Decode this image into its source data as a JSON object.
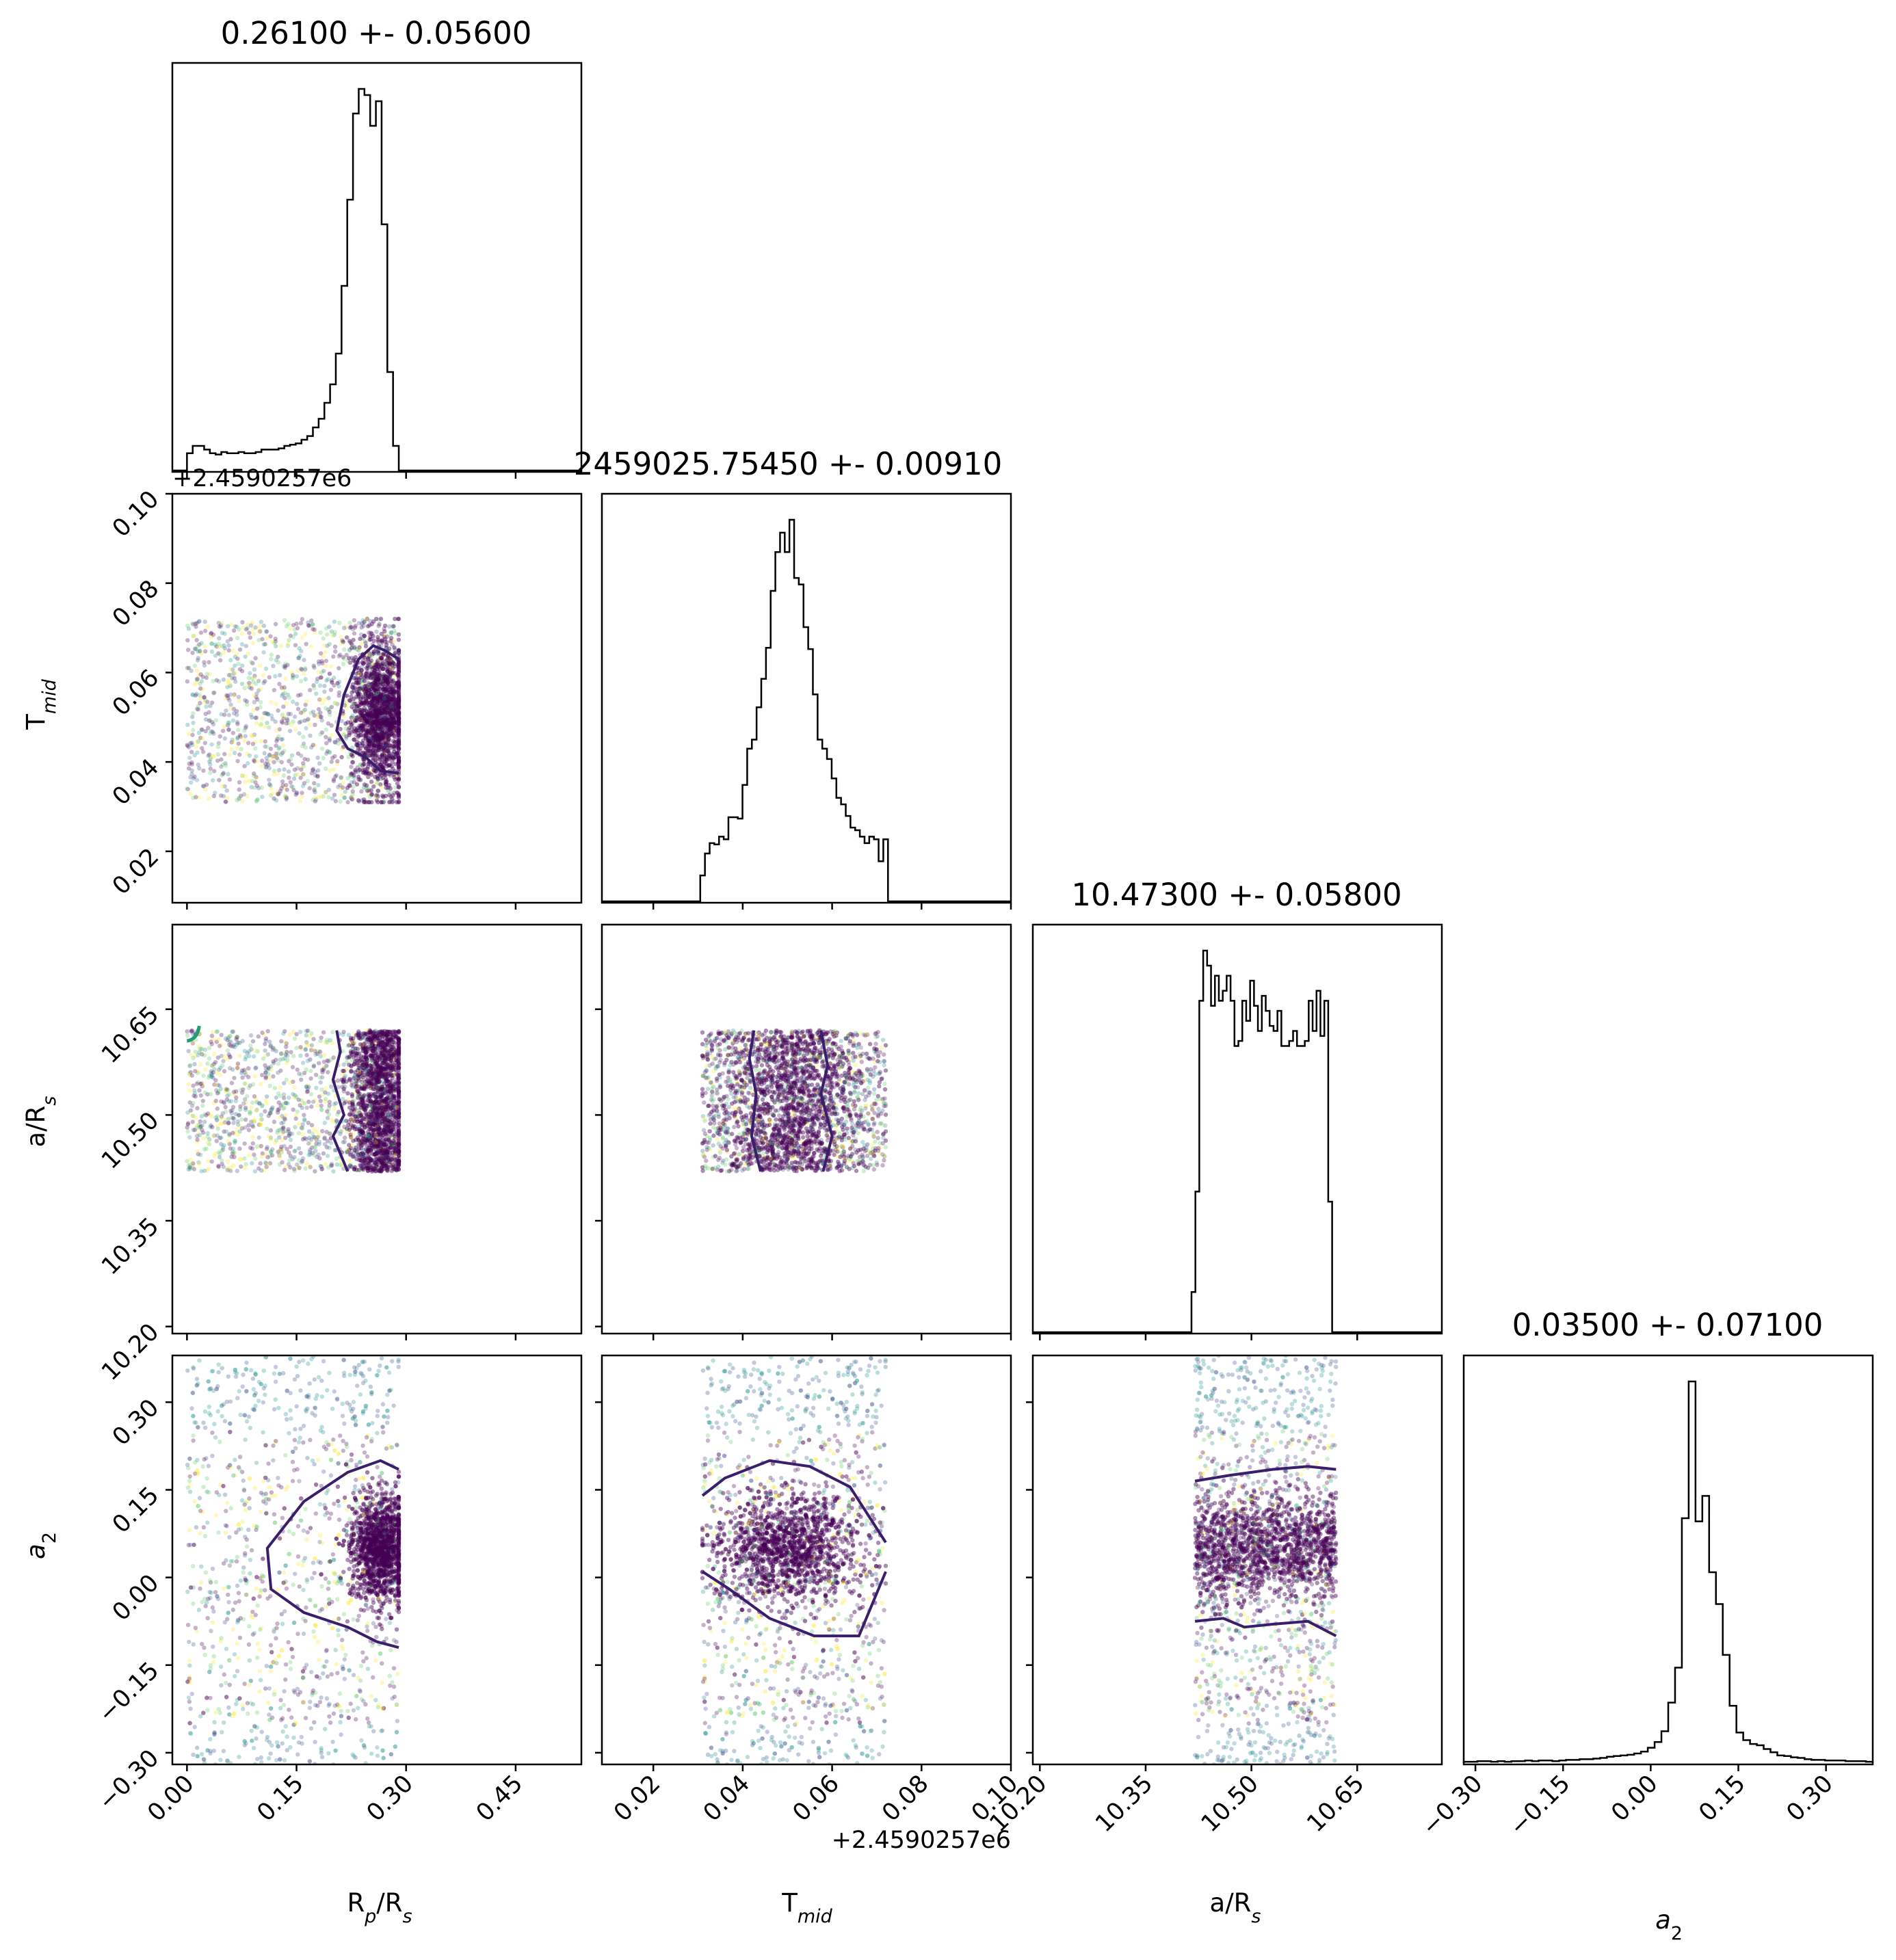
{
  "chart_data": {
    "type": "corner",
    "parameters": [
      {
        "name": "R<sub>p</sub>/R<sub>s</sub>",
        "label": "Rp/Rs",
        "label_sub": "p",
        "label_tail": "/R",
        "label_sub2": "s",
        "title": "0.26100 +- 0.05600",
        "range": [
          -0.02,
          0.54
        ],
        "ticks": [
          0.0,
          0.15,
          0.3,
          0.45
        ],
        "tick_labels": [
          "0.00",
          "0.15",
          "0.30",
          "0.45"
        ]
      },
      {
        "name": "T<sub>mid</sub>",
        "label": "Tmid",
        "label_sub": "mid",
        "title": "2459025.75450 +- 0.00910",
        "offset": "+2.4590257e6",
        "range": [
          0.0085,
          0.1
        ],
        "ticks": [
          0.02,
          0.04,
          0.06,
          0.08,
          0.1
        ],
        "tick_labels": [
          "0.02",
          "0.04",
          "0.06",
          "0.08",
          "0.10"
        ]
      },
      {
        "name": "a/R<sub>s</sub>",
        "label": "a/Rs",
        "label_sub": "s",
        "title": "10.47300 +- 0.05800",
        "range": [
          10.19,
          10.77
        ],
        "ticks": [
          10.2,
          10.35,
          10.5,
          10.65
        ],
        "tick_labels": [
          "10.20",
          "10.35",
          "10.50",
          "10.65"
        ]
      },
      {
        "name": "a<sub>2</sub>",
        "label": "a2",
        "label_sub": "2",
        "title": "0.03500 +- 0.07100",
        "range": [
          -0.32,
          0.38
        ],
        "ticks": [
          -0.3,
          -0.15,
          0.0,
          0.15,
          0.3
        ],
        "tick_labels": [
          "−0.30",
          "−0.15",
          "0.00",
          "0.15",
          "0.30"
        ]
      }
    ],
    "histograms": [
      {
        "param": "Rp/Rs",
        "bin_edges": [
          0.0,
          0.29
        ],
        "counts": [
          14,
          20,
          20,
          17,
          14,
          13,
          15,
          14,
          14,
          15,
          14,
          14,
          15,
          17,
          17,
          17,
          18,
          20,
          21,
          22,
          25,
          28,
          35,
          42,
          55,
          70,
          95,
          150,
          220,
          290,
          310,
          305,
          280,
          300,
          200,
          80,
          20
        ]
      },
      {
        "param": "Tmid",
        "bin_edges": [
          0.0305,
          0.0725
        ],
        "counts": [
          20,
          37,
          45,
          44,
          50,
          48,
          65,
          65,
          64,
          90,
          118,
          125,
          150,
          172,
          196,
          240,
          270,
          285,
          270,
          295,
          250,
          245,
          212,
          195,
          160,
          125,
          118,
          110,
          95,
          80,
          75,
          66,
          57,
          55,
          50,
          45,
          50,
          48,
          31,
          48
        ]
      },
      {
        "param": "a/Rs",
        "bin_edges": [
          10.415,
          10.62
        ],
        "counts": [
          40,
          140,
          330,
          380,
          365,
          325,
          355,
          330,
          340,
          355,
          330,
          285,
          290,
          330,
          310,
          350,
          325,
          300,
          335,
          320,
          305,
          300,
          320,
          285,
          285,
          290,
          300,
          285,
          285,
          290,
          330,
          300,
          340,
          295,
          330,
          130,
          0
        ]
      },
      {
        "param": "a2",
        "bin_edges": [
          -0.32,
          0.38
        ],
        "counts": [
          2,
          2,
          3,
          3,
          2,
          3,
          2,
          3,
          3,
          4,
          3,
          4,
          4,
          3,
          4,
          5,
          5,
          6,
          6,
          7,
          8,
          10,
          11,
          12,
          13,
          15,
          18,
          24,
          33,
          50,
          95,
          150,
          385,
          600,
          380,
          420,
          300,
          250,
          170,
          90,
          48,
          36,
          30,
          28,
          22,
          17,
          12,
          11,
          9,
          8,
          6,
          5,
          5,
          4,
          4,
          4,
          3,
          3,
          3,
          2
        ]
      }
    ],
    "scatter_ranges": {
      "Rp/Rs": [
        0.0,
        0.29
      ],
      "Tmid": [
        0.031,
        0.072
      ],
      "a/Rs": [
        10.42,
        10.62
      ],
      "a2": [
        -0.32,
        0.38
      ]
    },
    "colors": {
      "line": "#000000",
      "contour": "#3b1e6b",
      "contour_alt": "#1f9e76",
      "points_dense": "#440154",
      "points_mid": "#3b528b",
      "points_light": "#21918c",
      "points_faint": "#5ec962",
      "points_yellow": "#fde725"
    }
  },
  "texts": {
    "t1": "0.26100 +- 0.05600",
    "t2": "2459025.75450 +- 0.00910",
    "t3": "10.47300 +- 0.05800",
    "t4": "0.03500 +- 0.07100",
    "offset_top": "+2.4590257e6",
    "offset_bottom": "+2.4590257e6"
  }
}
